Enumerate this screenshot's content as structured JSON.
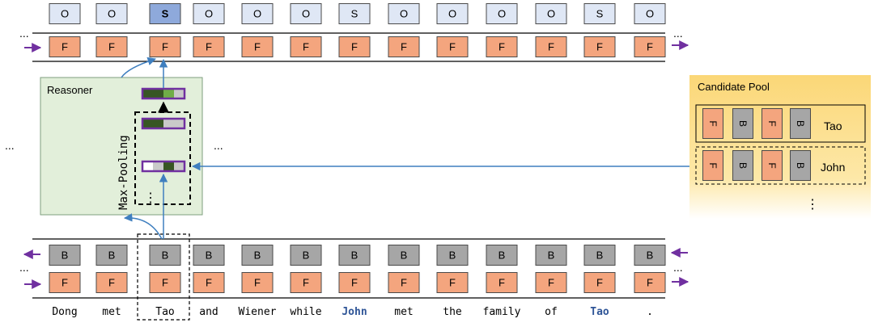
{
  "top_labels": [
    "O",
    "O",
    "S",
    "O",
    "O",
    "O",
    "S",
    "O",
    "O",
    "O",
    "O",
    "S",
    "O"
  ],
  "forward_label": "F",
  "backward_label": "B",
  "ellipsis": "...",
  "vertical_ellipsis": "⋮",
  "reasoner": {
    "title": "Reasoner",
    "pooling_label": "Max-Pooling"
  },
  "candidate_pool": {
    "title": "Candidate Pool",
    "rows": [
      {
        "name": "Tao",
        "cells": [
          "F",
          "B",
          "F",
          "B"
        ]
      },
      {
        "name": "John",
        "cells": [
          "F",
          "B",
          "F",
          "B"
        ]
      }
    ]
  },
  "tokens": [
    {
      "text": "Dong",
      "highlight": false
    },
    {
      "text": "met",
      "highlight": false
    },
    {
      "text": "Tao",
      "highlight": false
    },
    {
      "text": "and",
      "highlight": false
    },
    {
      "text": "Wiener",
      "highlight": false
    },
    {
      "text": "while",
      "highlight": false
    },
    {
      "text": "John",
      "highlight": true
    },
    {
      "text": "met",
      "highlight": false
    },
    {
      "text": "the",
      "highlight": false
    },
    {
      "text": "family",
      "highlight": false
    },
    {
      "text": "of",
      "highlight": false
    },
    {
      "text": "Tao",
      "highlight": true
    },
    {
      "text": ".",
      "highlight": false
    }
  ],
  "colors": {
    "forward_fill": "#f4a57e",
    "backward_fill": "#a6a6a6",
    "label_fill": "#dfe7f5",
    "label_fill_selected": "#8ea9db",
    "arrow_blue": "#3f7fbf",
    "arrow_purple": "#7030a0",
    "reasoner_fill": "#e2efda",
    "pool_fill": "#fbd777",
    "highlight_text": "#2f5597",
    "dark_green": "#375623",
    "light_green": "#70ad47",
    "light_gray": "#c9c9c9"
  }
}
